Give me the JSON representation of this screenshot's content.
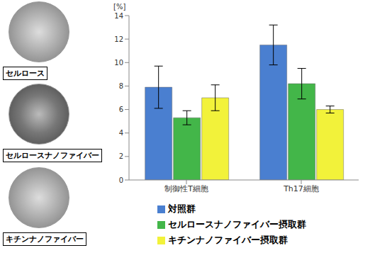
{
  "images": [
    {
      "label": "セルロース"
    },
    {
      "label": "セルロースナノファイバー"
    },
    {
      "label": "キチンナノファイバー"
    }
  ],
  "chart_data": {
    "type": "bar",
    "y_label": "[%]",
    "categories": [
      "制御性T細胞",
      "Th17細胞"
    ],
    "series": [
      {
        "name": "対照群",
        "color": "#4a7fd0",
        "values": [
          7.9,
          11.5
        ],
        "errors": [
          1.8,
          1.7
        ]
      },
      {
        "name": "セルロースナノファイバー摂取群",
        "color": "#43b649",
        "values": [
          5.3,
          8.2
        ],
        "errors": [
          0.6,
          1.3
        ]
      },
      {
        "name": "キチンナノファイバー摂取群",
        "color": "#f2f23a",
        "values": [
          7.0,
          6.0
        ],
        "errors": [
          1.1,
          0.3
        ]
      }
    ],
    "ylim": [
      0,
      14
    ],
    "yticks": [
      0,
      2,
      4,
      6,
      8,
      10,
      12,
      14
    ],
    "grid": false,
    "legend": "bottom"
  }
}
